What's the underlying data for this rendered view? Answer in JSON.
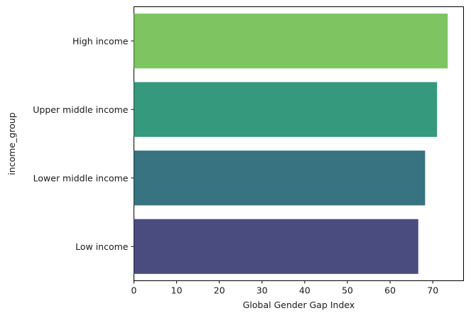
{
  "chart_data": {
    "type": "bar",
    "orientation": "horizontal",
    "title": "",
    "xlabel": "Global Gender Gap Index",
    "ylabel": "income_group",
    "categories": [
      "High income",
      "Upper middle income",
      "Lower middle income",
      "Low income"
    ],
    "values": [
      73.5,
      71.0,
      68.2,
      66.6
    ],
    "colors": [
      "#7ec460",
      "#35997d",
      "#377380",
      "#4a4b7e"
    ],
    "xlim": [
      0,
      77.2
    ],
    "xticks": [
      "0",
      "10",
      "20",
      "30",
      "40",
      "50",
      "60",
      "70"
    ],
    "grid": false,
    "legend": "none"
  }
}
